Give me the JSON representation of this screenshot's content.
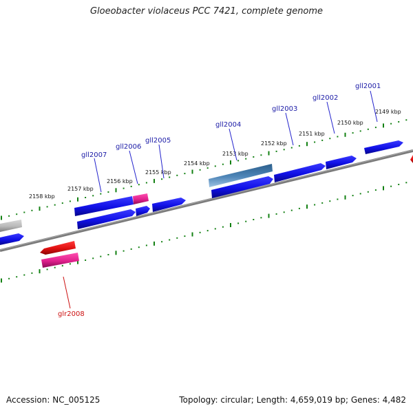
{
  "title": "Gloeobacter violaceus PCC 7421, complete genome",
  "footer": {
    "accession": "Accession: NC_005125",
    "topology": "Topology: circular; Length: 4,659,019 bp; Genes: 4,482"
  },
  "colors": {
    "forward_gene": "#1010e6",
    "reverse_gene": "#e01010",
    "rna_gene": "#e0208c",
    "pseudo_gene": "#b8b8b8",
    "steel_gene": "#4f86b8",
    "backbone": "#7a7a7a",
    "ticks": "#128012",
    "forward_label": "#1a1aa6",
    "reverse_label": "#cc1010"
  },
  "kbp_labels": [
    "2149 kbp",
    "2150 kbp",
    "2151 kbp",
    "2152 kbp",
    "2153 kbp",
    "2154 kbp",
    "2155 kbp",
    "2156 kbp",
    "2157 kbp",
    "2158 kbp"
  ],
  "gene_labels": [
    {
      "text": "gll2001",
      "strand": "forward"
    },
    {
      "text": "gll2002",
      "strand": "forward"
    },
    {
      "text": "gll2003",
      "strand": "forward"
    },
    {
      "text": "gll2004",
      "strand": "forward"
    },
    {
      "text": "gll2005",
      "strand": "forward"
    },
    {
      "text": "gll2006",
      "strand": "forward"
    },
    {
      "text": "gll2007",
      "strand": "forward"
    },
    {
      "text": "glr2008",
      "strand": "reverse"
    }
  ]
}
